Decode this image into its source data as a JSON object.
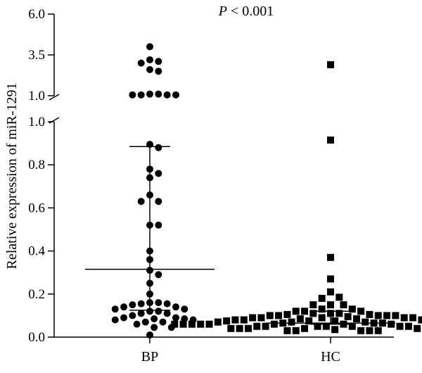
{
  "chart_data": {
    "type": "scatter",
    "title": "",
    "annotation": {
      "italic": "P",
      "rest": " < 0.001"
    },
    "ylabel": "Relative expression of miR-1291",
    "xlabel": "",
    "categories": [
      "BP",
      "HC"
    ],
    "y_axis": {
      "broken": true,
      "lower_segment": {
        "range": [
          0,
          1.0
        ],
        "ticks": [
          "0.0",
          "0.2",
          "0.4",
          "0.6",
          "0.8",
          "1.0"
        ]
      },
      "upper_segment": {
        "range": [
          1.0,
          6.0
        ],
        "ticks": [
          "1.0",
          "3.5",
          "6.0"
        ]
      }
    },
    "grid": false,
    "legend": "none",
    "series": [
      {
        "category": "BP",
        "marker": "circle",
        "mean": 0.315,
        "sd_bar": [
          0.125,
          0.885
        ],
        "values": [
          4.0,
          3.2,
          3.1,
          3.0,
          2.6,
          2.5,
          1.1,
          1.05,
          1.05,
          1.05,
          1.05,
          1.1,
          0.895,
          0.88,
          0.78,
          0.76,
          0.74,
          0.66,
          0.63,
          0.63,
          0.52,
          0.52,
          0.4,
          0.36,
          0.31,
          0.29,
          0.25,
          0.2,
          0.16,
          0.16,
          0.155,
          0.155,
          0.15,
          0.14,
          0.14,
          0.13,
          0.13,
          0.12,
          0.12,
          0.11,
          0.11,
          0.1,
          0.09,
          0.09,
          0.085,
          0.085,
          0.08,
          0.08,
          0.07,
          0.07,
          0.06,
          0.045,
          0.045,
          0.01
        ]
      },
      {
        "category": "HC",
        "marker": "square",
        "mean": 0.065,
        "sd_bar": [
          0.06,
          0.12
        ],
        "values": [
          2.9,
          0.915,
          0.37,
          0.27,
          0.21,
          0.185,
          0.18,
          0.15,
          0.15,
          0.15,
          0.13,
          0.13,
          0.12,
          0.12,
          0.12,
          0.11,
          0.11,
          0.11,
          0.105,
          0.105,
          0.1,
          0.1,
          0.1,
          0.1,
          0.1,
          0.095,
          0.09,
          0.09,
          0.09,
          0.09,
          0.09,
          0.085,
          0.085,
          0.08,
          0.08,
          0.08,
          0.08,
          0.075,
          0.075,
          0.075,
          0.07,
          0.07,
          0.07,
          0.07,
          0.065,
          0.065,
          0.065,
          0.06,
          0.06,
          0.06,
          0.06,
          0.06,
          0.06,
          0.06,
          0.06,
          0.06,
          0.06,
          0.06,
          0.06,
          0.06,
          0.05,
          0.05,
          0.05,
          0.05,
          0.05,
          0.05,
          0.05,
          0.05,
          0.04,
          0.04,
          0.04,
          0.04,
          0.04,
          0.04,
          0.035,
          0.03,
          0.03,
          0.03,
          0.03,
          0.03
        ]
      }
    ]
  }
}
